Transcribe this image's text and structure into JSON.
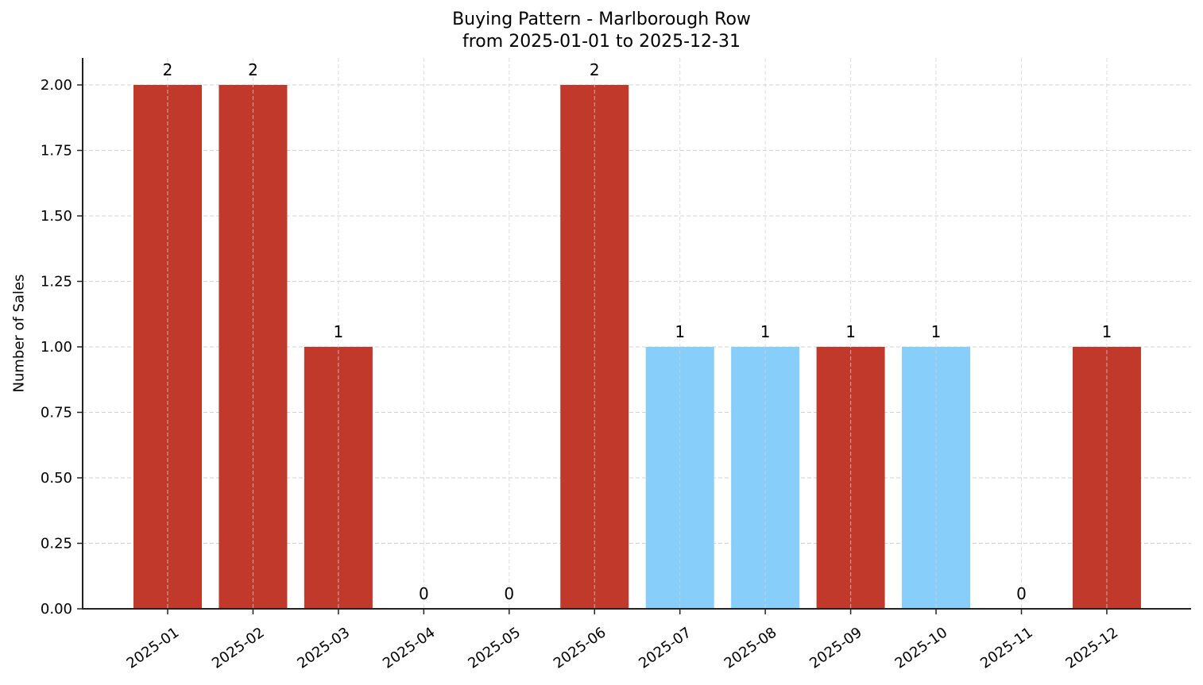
{
  "chart_data": {
    "type": "bar",
    "title": "Buying Pattern - Marlborough Row",
    "subtitle": "from 2025-01-01 to 2025-12-31",
    "xlabel": "",
    "ylabel": "Number of Sales",
    "ylim": [
      0,
      2.1
    ],
    "yticks": [
      "0.00",
      "0.25",
      "0.50",
      "0.75",
      "1.00",
      "1.25",
      "1.50",
      "1.75",
      "2.00"
    ],
    "grid": true,
    "legend": null,
    "categories": [
      "2025-01",
      "2025-02",
      "2025-03",
      "2025-04",
      "2025-05",
      "2025-06",
      "2025-07",
      "2025-08",
      "2025-09",
      "2025-10",
      "2025-11",
      "2025-12"
    ],
    "values": [
      2,
      2,
      1,
      0,
      0,
      2,
      1,
      1,
      1,
      1,
      0,
      1
    ],
    "bar_colors": [
      "#c0392b",
      "#c0392b",
      "#c0392b",
      "#c0392b",
      "#c0392b",
      "#c0392b",
      "#87cefa",
      "#87cefa",
      "#c0392b",
      "#87cefa",
      "#c0392b",
      "#c0392b"
    ],
    "data_labels": [
      "2",
      "2",
      "1",
      "0",
      "0",
      "2",
      "1",
      "1",
      "1",
      "1",
      "0",
      "1"
    ]
  },
  "colors": {
    "primary_bar": "#c0392b",
    "secondary_bar": "#87cefa",
    "grid": "#d3d3d3",
    "axis": "#222222"
  }
}
